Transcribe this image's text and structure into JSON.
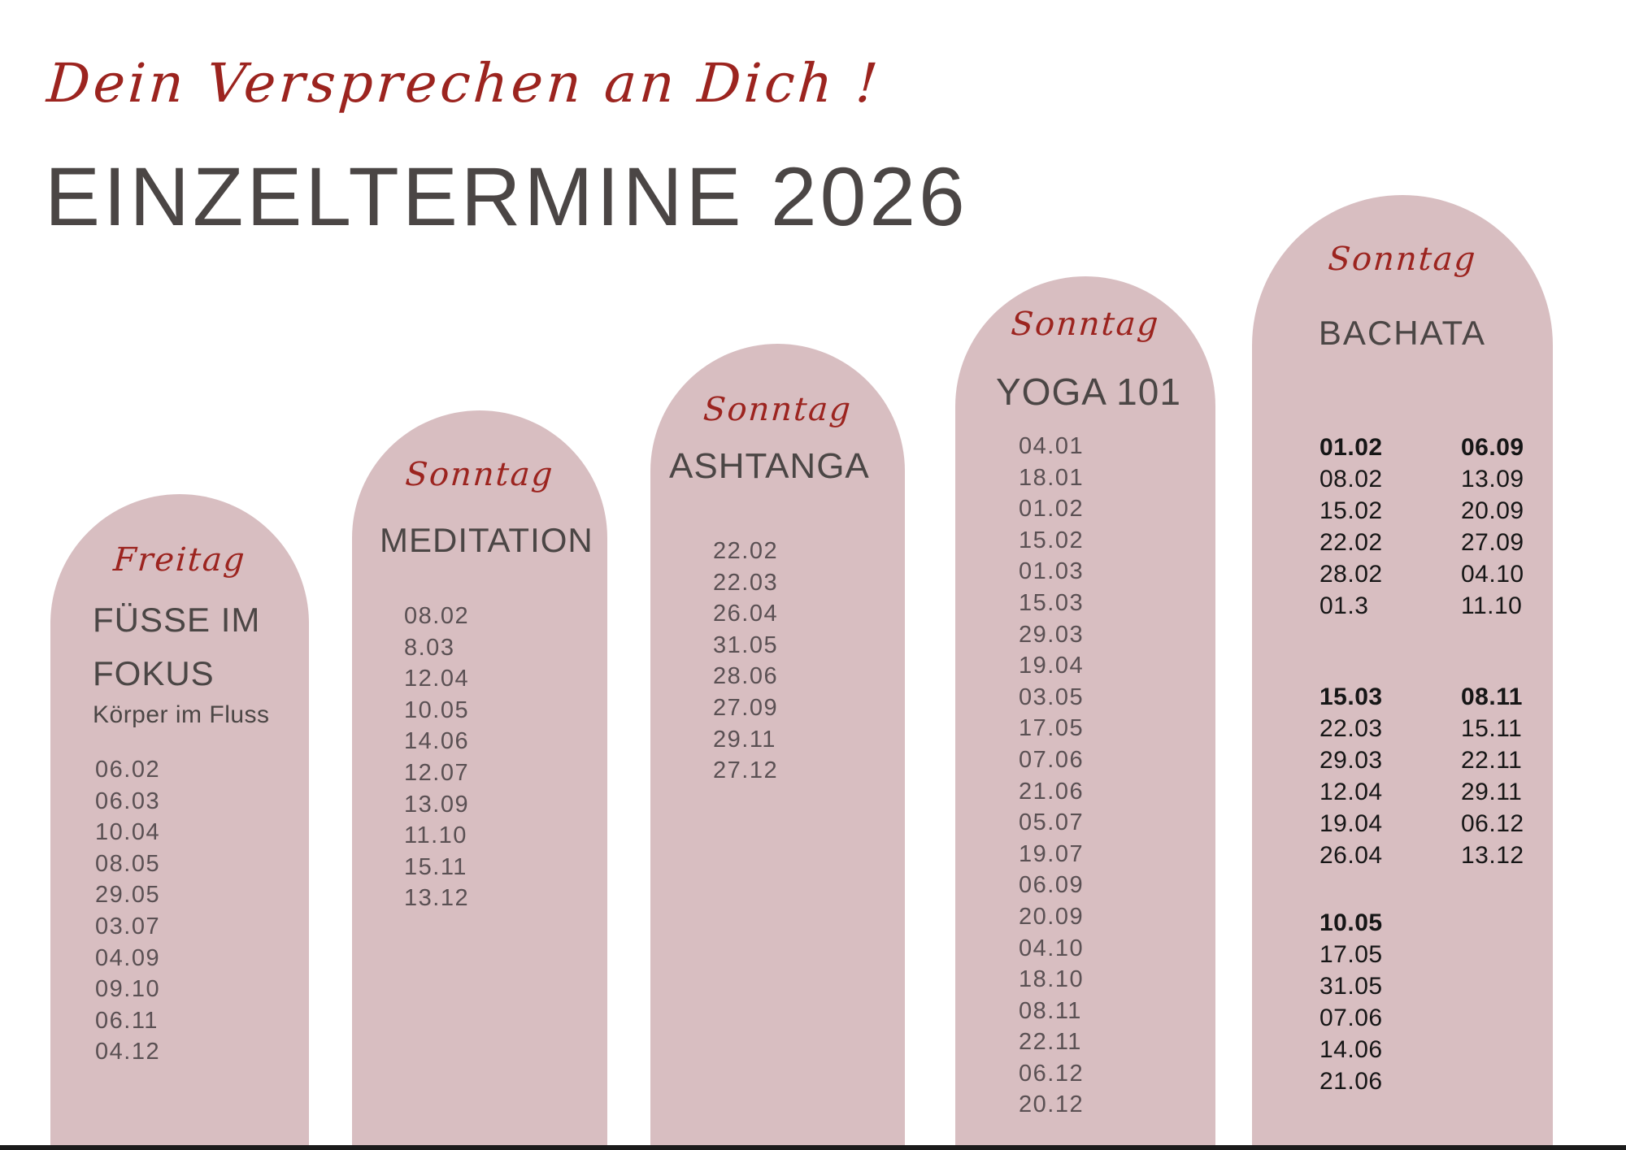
{
  "header": {
    "tagline": "Dein Versprechen an Dich !",
    "title": "EINZELTERMINE 2026"
  },
  "colors": {
    "pink": "#d8bec1",
    "red": "#9c241f",
    "title-gray": "#4b4645",
    "date-gray": "#5a5053",
    "near-black": "#161616"
  },
  "columns": [
    {
      "day": "Freitag",
      "title_line1": "FÜSSE IM",
      "title_line2": "FOKUS",
      "subtitle": "Körper im Fluss",
      "dates": [
        "06.02",
        "06.03",
        "10.04",
        "08.05",
        "29.05",
        "03.07",
        "04.09",
        "09.10",
        "06.11",
        "04.12"
      ]
    },
    {
      "day": "Sonntag",
      "title": "MEDITATION",
      "dates": [
        "08.02",
        "8.03",
        "12.04",
        "10.05",
        "14.06",
        "12.07",
        "13.09",
        "11.10",
        "15.11",
        "13.12"
      ]
    },
    {
      "day": "Sonntag",
      "title": "ASHTANGA",
      "dates": [
        "22.02",
        "22.03",
        "26.04",
        "31.05",
        "28.06",
        "27.09",
        "29.11",
        "27.12"
      ]
    },
    {
      "day": "Sonntag",
      "title": "YOGA 101",
      "dates": [
        "04.01",
        "18.01",
        "01.02",
        "15.02",
        "01.03",
        "15.03",
        "29.03",
        "19.04",
        "03.05",
        "17.05",
        "07.06",
        "21.06",
        "05.07",
        "19.07",
        "06.09",
        "20.09",
        "04.10",
        "18.10",
        "08.11",
        "22.11",
        "06.12",
        "20.12"
      ]
    },
    {
      "day": "Sonntag",
      "title": "BACHATA",
      "groups": [
        {
          "left": [
            "01.02",
            "08.02",
            "15.02",
            "22.02",
            "28.02",
            "01.3"
          ],
          "right": [
            "06.09",
            "13.09",
            "20.09",
            "27.09",
            "04.10",
            "11.10"
          ]
        },
        {
          "left": [
            "15.03",
            "22.03",
            "29.03",
            "12.04",
            "19.04",
            "26.04"
          ],
          "right": [
            "08.11",
            "15.11",
            "22.11",
            "29.11",
            "06.12",
            "13.12"
          ]
        },
        {
          "left": [
            "10.05",
            "17.05",
            "31.05",
            "07.06",
            "14.06",
            "21.06"
          ],
          "right": []
        }
      ]
    }
  ]
}
